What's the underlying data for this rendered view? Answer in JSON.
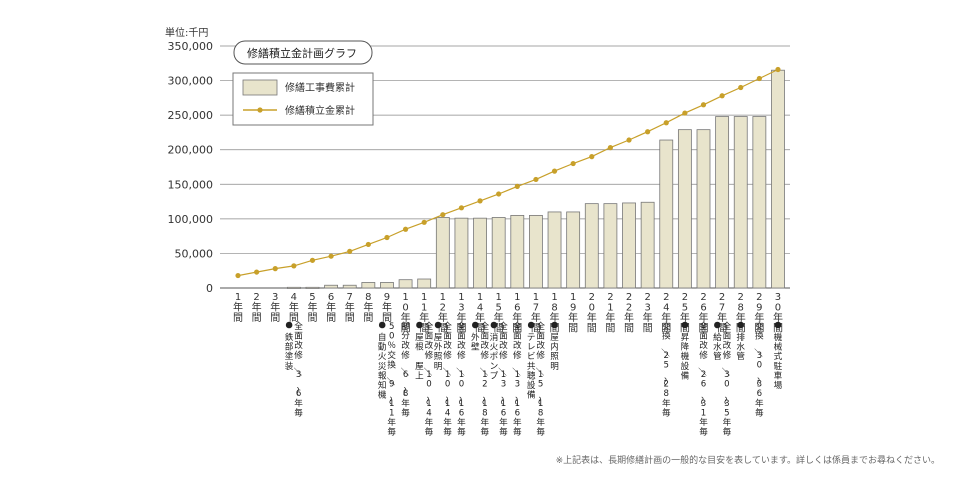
{
  "chart_data": {
    "type": "bar",
    "title": "修繕積立金計画グラフ",
    "unit_label": "単位:千円",
    "ylim": [
      0,
      350000
    ],
    "yticks": [
      "0",
      "50,000",
      "100,000",
      "150,000",
      "200,000",
      "250,000",
      "300,000",
      "350,000"
    ],
    "grid": "horizontal",
    "legend_position": "top-left",
    "categories": [
      "1年間",
      "2年間",
      "3年間",
      "4年間",
      "5年間",
      "6年間",
      "7年間",
      "8年間",
      "9年間",
      "10年間",
      "11年間",
      "12年間",
      "13年間",
      "14年間",
      "15年間",
      "16年間",
      "17年間",
      "18年間",
      "19年間",
      "20年間",
      "21年間",
      "22年間",
      "23年間",
      "24年間",
      "25年間",
      "26年間",
      "27年間",
      "28年間",
      "29年間",
      "30年間"
    ],
    "series": [
      {
        "name": "修繕工事費累計",
        "type": "bar",
        "color": "#e8e4cc",
        "values": [
          0,
          0,
          0,
          1000,
          1000,
          4000,
          4000,
          8000,
          8000,
          12000,
          13000,
          102000,
          101000,
          101000,
          102000,
          105000,
          105000,
          110000,
          110000,
          122000,
          122000,
          123000,
          124000,
          214000,
          229000,
          229000,
          248000,
          248000,
          248000,
          315000
        ]
      },
      {
        "name": "修繕積立金累計",
        "type": "line",
        "color": "#c8a02a",
        "values": [
          18000,
          23000,
          28000,
          32000,
          40000,
          46000,
          53000,
          63000,
          73000,
          85000,
          95000,
          106000,
          116000,
          126000,
          136000,
          147000,
          157000,
          169000,
          180000,
          190000,
          203000,
          214000,
          226000,
          239000,
          253000,
          265000,
          278000,
          290000,
          303000,
          316000
        ]
      }
    ],
    "annotations": [
      {
        "x": "4年間",
        "lines": [
          "●鉄部塗装",
          "全面改修／3〜6年毎"
        ]
      },
      {
        "x": "9年間",
        "lines": [
          "●自動火災報知機",
          "50％交換／9〜11年毎"
        ]
      },
      {
        "x": "10年間",
        "lines": [
          "部分改修／6〜8年毎"
        ]
      },
      {
        "x": "11年間",
        "lines": [
          "●屋根・屋上",
          "全面改修／10〜14年毎"
        ]
      },
      {
        "x": "12年間",
        "lines": [
          "●屋外照明",
          "全面改修／10〜14年毎"
        ]
      },
      {
        "x": "13年間",
        "lines": [
          "全面改修／10〜16年毎"
        ]
      },
      {
        "x": "14年間",
        "lines": [
          "●外壁",
          "全面改修／12〜18年毎"
        ]
      },
      {
        "x": "15年間",
        "lines": [
          "●消火ポンプ",
          "全面改修／13〜16年毎"
        ]
      },
      {
        "x": "16年間",
        "lines": [
          "全面改修／13〜16年毎"
        ]
      },
      {
        "x": "17年間",
        "lines": [
          "●テレビ共聴設備",
          "全面改修／15〜18年毎"
        ]
      },
      {
        "x": "18年間",
        "lines": [
          "●屋内照明"
        ]
      },
      {
        "x": "24年間",
        "lines": [
          "交換／25〜28年毎"
        ]
      },
      {
        "x": "25年間",
        "lines": [
          "●昇降機設備"
        ]
      },
      {
        "x": "26年間",
        "lines": [
          "全面改修／26〜31年毎"
        ]
      },
      {
        "x": "27年間",
        "lines": [
          "●給水管",
          "全面改修／30〜35年毎"
        ]
      },
      {
        "x": "28年間",
        "lines": [
          "●排水管"
        ]
      },
      {
        "x": "29年間",
        "lines": [
          "交換／30〜36年毎"
        ]
      },
      {
        "x": "30年間",
        "lines": [
          "●機械式駐車場"
        ]
      }
    ],
    "footnote": "※上記表は、長期修繕計画の一般的な目安を表しています。詳しくは係員までお尋ねください。"
  }
}
